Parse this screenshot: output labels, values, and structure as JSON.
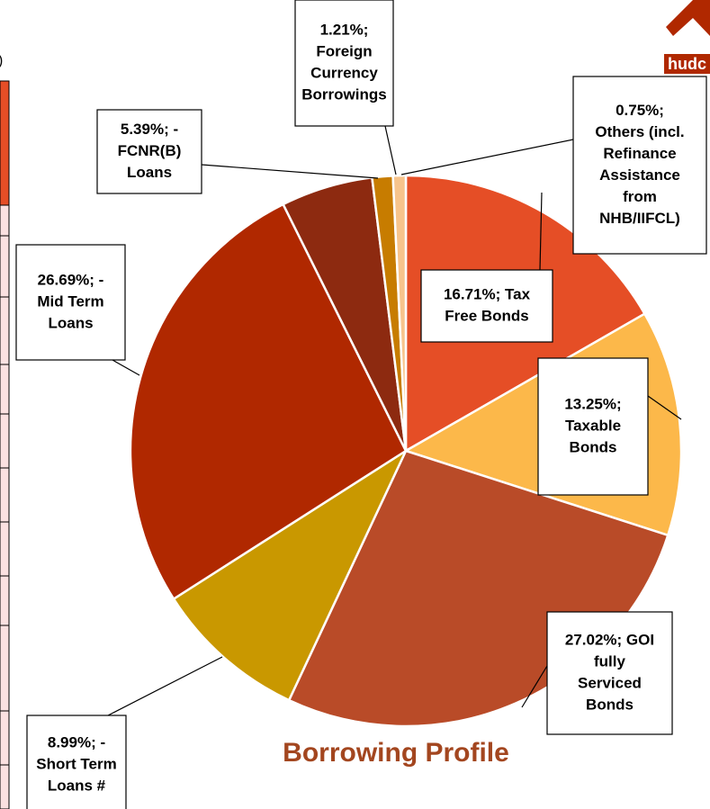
{
  "chart_data": {
    "type": "pie",
    "title": "Borrowing Profile",
    "values": [
      16.71,
      13.25,
      27.02,
      8.99,
      26.69,
      5.39,
      1.21,
      0.75
    ],
    "labels": [
      [
        "16.71%; Tax",
        "Free Bonds"
      ],
      [
        "13.25%;",
        "Taxable",
        "Bonds"
      ],
      [
        "27.02%; GOI",
        "fully",
        "Serviced",
        "Bonds"
      ],
      [
        "8.99%; -",
        "Short Term",
        "Loans #"
      ],
      [
        "26.69%; -",
        "Mid Term",
        "Loans"
      ],
      [
        "5.39%; -",
        "FCNR(B)",
        "Loans"
      ],
      [
        "1.21%;",
        "Foreign",
        "Currency",
        "Borrowings"
      ],
      [
        "0.75%;",
        "Others  (incl.",
        "Refinance",
        "Assistance",
        "from",
        "NHB/IIFCL)"
      ]
    ],
    "colors": [
      "#e54e26",
      "#fcb84a",
      "#b94b28",
      "#c99800",
      "#b02800",
      "#8d2a10",
      "#c77c00",
      "#f7c48c"
    ]
  },
  "fragments": {
    "left_edge": ")",
    "logo": "hudc"
  }
}
